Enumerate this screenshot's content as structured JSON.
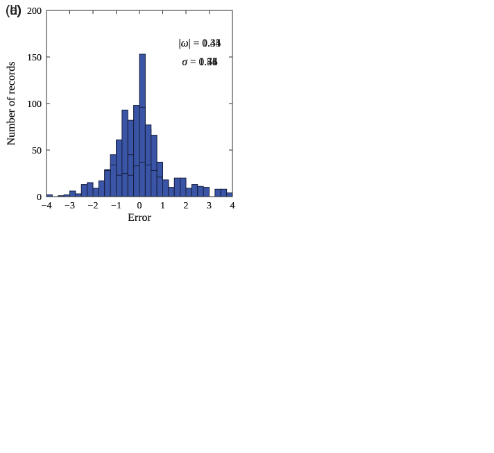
{
  "figure": {
    "background": "#ffffff",
    "axis_color": "#2b2b2b",
    "text_color": "#1a1a1a",
    "bar_fill": "#3a55a5",
    "bar_edge": "#161d3e",
    "xlabel": "Error",
    "ylabel": "Number of records",
    "xlim": [
      -4,
      4
    ],
    "ylim": [
      0,
      200
    ],
    "x_tick_values": [
      -4,
      -3,
      -2,
      -1,
      0,
      1,
      2,
      3,
      4
    ],
    "x_tick_labels": [
      "−4",
      "−3",
      "−2",
      "−1",
      "0",
      "1",
      "2",
      "3",
      "4"
    ],
    "y_tick_values": [
      0,
      50,
      100,
      150,
      200
    ],
    "y_tick_labels": [
      "0",
      "50",
      "100",
      "150",
      "200"
    ],
    "symbols": {
      "abs_omega_left": "|",
      "omega": "ω",
      "abs_omega_right": "|",
      "equals": " = ",
      "sigma": "σ"
    }
  },
  "chart_data": [
    {
      "type": "bar",
      "subtype": "histogram",
      "panel_label": "(a)",
      "title": "",
      "xlabel": "Error",
      "ylabel": "Number of records",
      "xlim": [
        -4,
        4
      ],
      "ylim": [
        0,
        200
      ],
      "grid": false,
      "bin_width": 0.25,
      "bin_start": -1.5,
      "counts": [
        1,
        8,
        14,
        36,
        61,
        98,
        153,
        72,
        30,
        7,
        3,
        3
      ],
      "annotations": {
        "abs_omega": "0.31",
        "sigma": "0.41"
      }
    },
    {
      "type": "bar",
      "subtype": "histogram",
      "panel_label": "(b)",
      "title": "",
      "xlabel": "Error",
      "ylabel": "Number of records",
      "xlim": [
        -4,
        4
      ],
      "ylim": [
        0,
        200
      ],
      "grid": false,
      "bin_width": 0.25,
      "bin_start": -2.25,
      "counts": [
        2,
        4,
        10,
        29,
        45,
        61,
        93,
        82,
        80,
        45,
        24,
        8,
        0,
        3,
        2,
        1
      ],
      "annotations": {
        "abs_omega": "0.44",
        "sigma": "0.55"
      }
    },
    {
      "type": "bar",
      "subtype": "histogram",
      "panel_label": "(c)",
      "title": "",
      "xlabel": "Error",
      "ylabel": "Number of records",
      "xlim": [
        -4,
        4
      ],
      "ylim": [
        0,
        200
      ],
      "grid": false,
      "bin_width": 0.25,
      "bin_start": -1.5,
      "counts": [
        3,
        11,
        14,
        17,
        45,
        98,
        96,
        77,
        66,
        37,
        13,
        3,
        4,
        1,
        2,
        0,
        0,
        1
      ],
      "annotations": {
        "abs_omega": "0.44",
        "sigma": "0.56"
      }
    },
    {
      "type": "bar",
      "subtype": "histogram",
      "panel_label": "(d)",
      "title": "",
      "xlabel": "Error",
      "ylabel": "Number of records",
      "xlim": [
        -4,
        4
      ],
      "ylim": [
        0,
        200
      ],
      "grid": false,
      "bin_width": 0.25,
      "bin_start": -4.0,
      "counts": [
        2,
        0,
        1,
        2,
        6,
        3,
        13,
        15,
        9,
        17,
        28,
        34,
        23,
        25,
        23,
        33,
        37,
        34,
        28,
        21,
        18,
        10,
        20,
        20,
        9,
        13,
        11,
        10,
        0,
        8,
        8,
        4
      ],
      "annotations": {
        "abs_omega": "1.35",
        "sigma": "1.74"
      }
    }
  ]
}
